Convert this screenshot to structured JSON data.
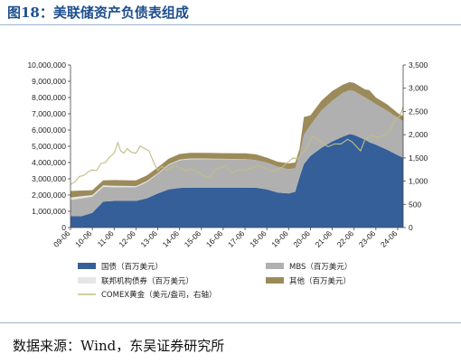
{
  "title": "图18：美联储资产负债表组成",
  "source": "数据来源：Wind，东吴证券研究所",
  "chart_data": {
    "type": "area",
    "x_tick_labels": [
      "09-06",
      "10-06",
      "11-06",
      "12-06",
      "13-06",
      "14-06",
      "15-06",
      "16-06",
      "17-06",
      "18-06",
      "19-06",
      "20-06",
      "21-06",
      "22-06",
      "23-06",
      "24-06"
    ],
    "x_range": [
      "2009-06",
      "2024-09"
    ],
    "y_left": {
      "ticks": [
        "0",
        "1,000,000",
        "2,000,000",
        "3,000,000",
        "4,000,000",
        "5,000,000",
        "6,000,000",
        "7,000,000",
        "8,000,000",
        "9,000,000",
        "10,000,000"
      ],
      "range": [
        0,
        10000000
      ]
    },
    "y_right": {
      "ticks": [
        "0",
        "500",
        "1,000",
        "1,500",
        "2,000",
        "2,500",
        "3,000",
        "3,500"
      ],
      "range": [
        0,
        3500
      ]
    },
    "x": [
      2009.5,
      2010.0,
      2010.5,
      2011.0,
      2011.5,
      2012.0,
      2012.5,
      2013.0,
      2013.5,
      2014.0,
      2014.5,
      2015.0,
      2015.5,
      2016.0,
      2016.5,
      2017.0,
      2017.5,
      2018.0,
      2018.5,
      2019.0,
      2019.5,
      2019.8,
      2020.0,
      2020.2,
      2020.5,
      2021.0,
      2021.5,
      2022.0,
      2022.3,
      2022.5,
      2023.0,
      2023.2,
      2023.5,
      2024.0,
      2024.5,
      2024.75
    ],
    "series": [
      {
        "name": "国债（百万美元）",
        "color": "#355f99",
        "values": [
          700000,
          700000,
          900000,
          1600000,
          1640000,
          1640000,
          1640000,
          1800000,
          2100000,
          2350000,
          2440000,
          2460000,
          2460000,
          2460000,
          2460000,
          2460000,
          2460000,
          2450000,
          2350000,
          2150000,
          2100000,
          2200000,
          3100000,
          3900000,
          4400000,
          4900000,
          5300000,
          5600000,
          5750000,
          5700000,
          5400000,
          5250000,
          5100000,
          4800000,
          4450000,
          4300000
        ]
      },
      {
        "name": "MBS（百万美元）",
        "color": "#b0b0b0",
        "values": [
          1000000,
          1100000,
          1000000,
          900000,
          850000,
          850000,
          850000,
          1000000,
          1200000,
          1500000,
          1700000,
          1750000,
          1750000,
          1750000,
          1750000,
          1750000,
          1750000,
          1700000,
          1650000,
          1600000,
          1500000,
          1450000,
          1400000,
          1800000,
          1900000,
          2300000,
          2500000,
          2700000,
          2700000,
          2700000,
          2600000,
          2600000,
          2500000,
          2400000,
          2300000,
          2250000
        ]
      },
      {
        "name": "联邦机构债券（百万美元）",
        "color": "#e6e6e6",
        "values": [
          150000,
          130000,
          100000,
          100000,
          80000,
          70000,
          60000,
          60000,
          50000,
          40000,
          40000,
          40000,
          40000,
          30000,
          20000,
          10000,
          5000,
          3000,
          2000,
          2000,
          2000,
          2000,
          2000,
          2000,
          2000,
          2000,
          2000,
          2000,
          2000,
          2000,
          2000,
          2000,
          2000,
          2000,
          2000,
          2000
        ]
      },
      {
        "name": "其他（百万美元）",
        "color": "#9c8b5a",
        "values": [
          400000,
          350000,
          300000,
          300000,
          350000,
          350000,
          350000,
          350000,
          350000,
          350000,
          350000,
          350000,
          350000,
          350000,
          350000,
          350000,
          350000,
          350000,
          300000,
          300000,
          350000,
          350000,
          350000,
          1100000,
          600000,
          600000,
          600000,
          500000,
          500000,
          500000,
          500000,
          600000,
          400000,
          400000,
          300000,
          300000
        ]
      }
    ],
    "line_series": {
      "name": "COMEX黄金（美元/盎司，右轴）",
      "color": "#c3bd86",
      "axis": "right",
      "x": [
        2009.5,
        2009.7,
        2009.9,
        2010.1,
        2010.3,
        2010.5,
        2010.7,
        2010.9,
        2011.1,
        2011.3,
        2011.5,
        2011.67,
        2011.8,
        2011.95,
        2012.1,
        2012.3,
        2012.5,
        2012.7,
        2012.9,
        2013.1,
        2013.3,
        2013.5,
        2013.7,
        2013.9,
        2014.2,
        2014.5,
        2014.8,
        2015.0,
        2015.3,
        2015.6,
        2015.9,
        2016.1,
        2016.4,
        2016.6,
        2016.9,
        2017.2,
        2017.5,
        2017.8,
        2018.1,
        2018.4,
        2018.7,
        2018.9,
        2019.2,
        2019.5,
        2019.7,
        2019.9,
        2020.1,
        2020.3,
        2020.6,
        2020.8,
        2021.0,
        2021.3,
        2021.6,
        2021.9,
        2022.2,
        2022.4,
        2022.6,
        2022.8,
        2023.0,
        2023.3,
        2023.6,
        2023.9,
        2024.1,
        2024.4,
        2024.6,
        2024.75
      ],
      "values": [
        930,
        980,
        1100,
        1120,
        1200,
        1240,
        1230,
        1380,
        1400,
        1520,
        1600,
        1830,
        1650,
        1600,
        1700,
        1620,
        1600,
        1760,
        1700,
        1650,
        1420,
        1230,
        1320,
        1230,
        1320,
        1300,
        1210,
        1260,
        1200,
        1120,
        1070,
        1240,
        1290,
        1340,
        1170,
        1250,
        1230,
        1290,
        1330,
        1290,
        1200,
        1230,
        1300,
        1420,
        1500,
        1480,
        1580,
        1700,
        1970,
        1900,
        1850,
        1740,
        1800,
        1800,
        1900,
        1850,
        1750,
        1650,
        1900,
        1980,
        1940,
        1990,
        2050,
        2330,
        2400,
        2600
      ]
    }
  }
}
